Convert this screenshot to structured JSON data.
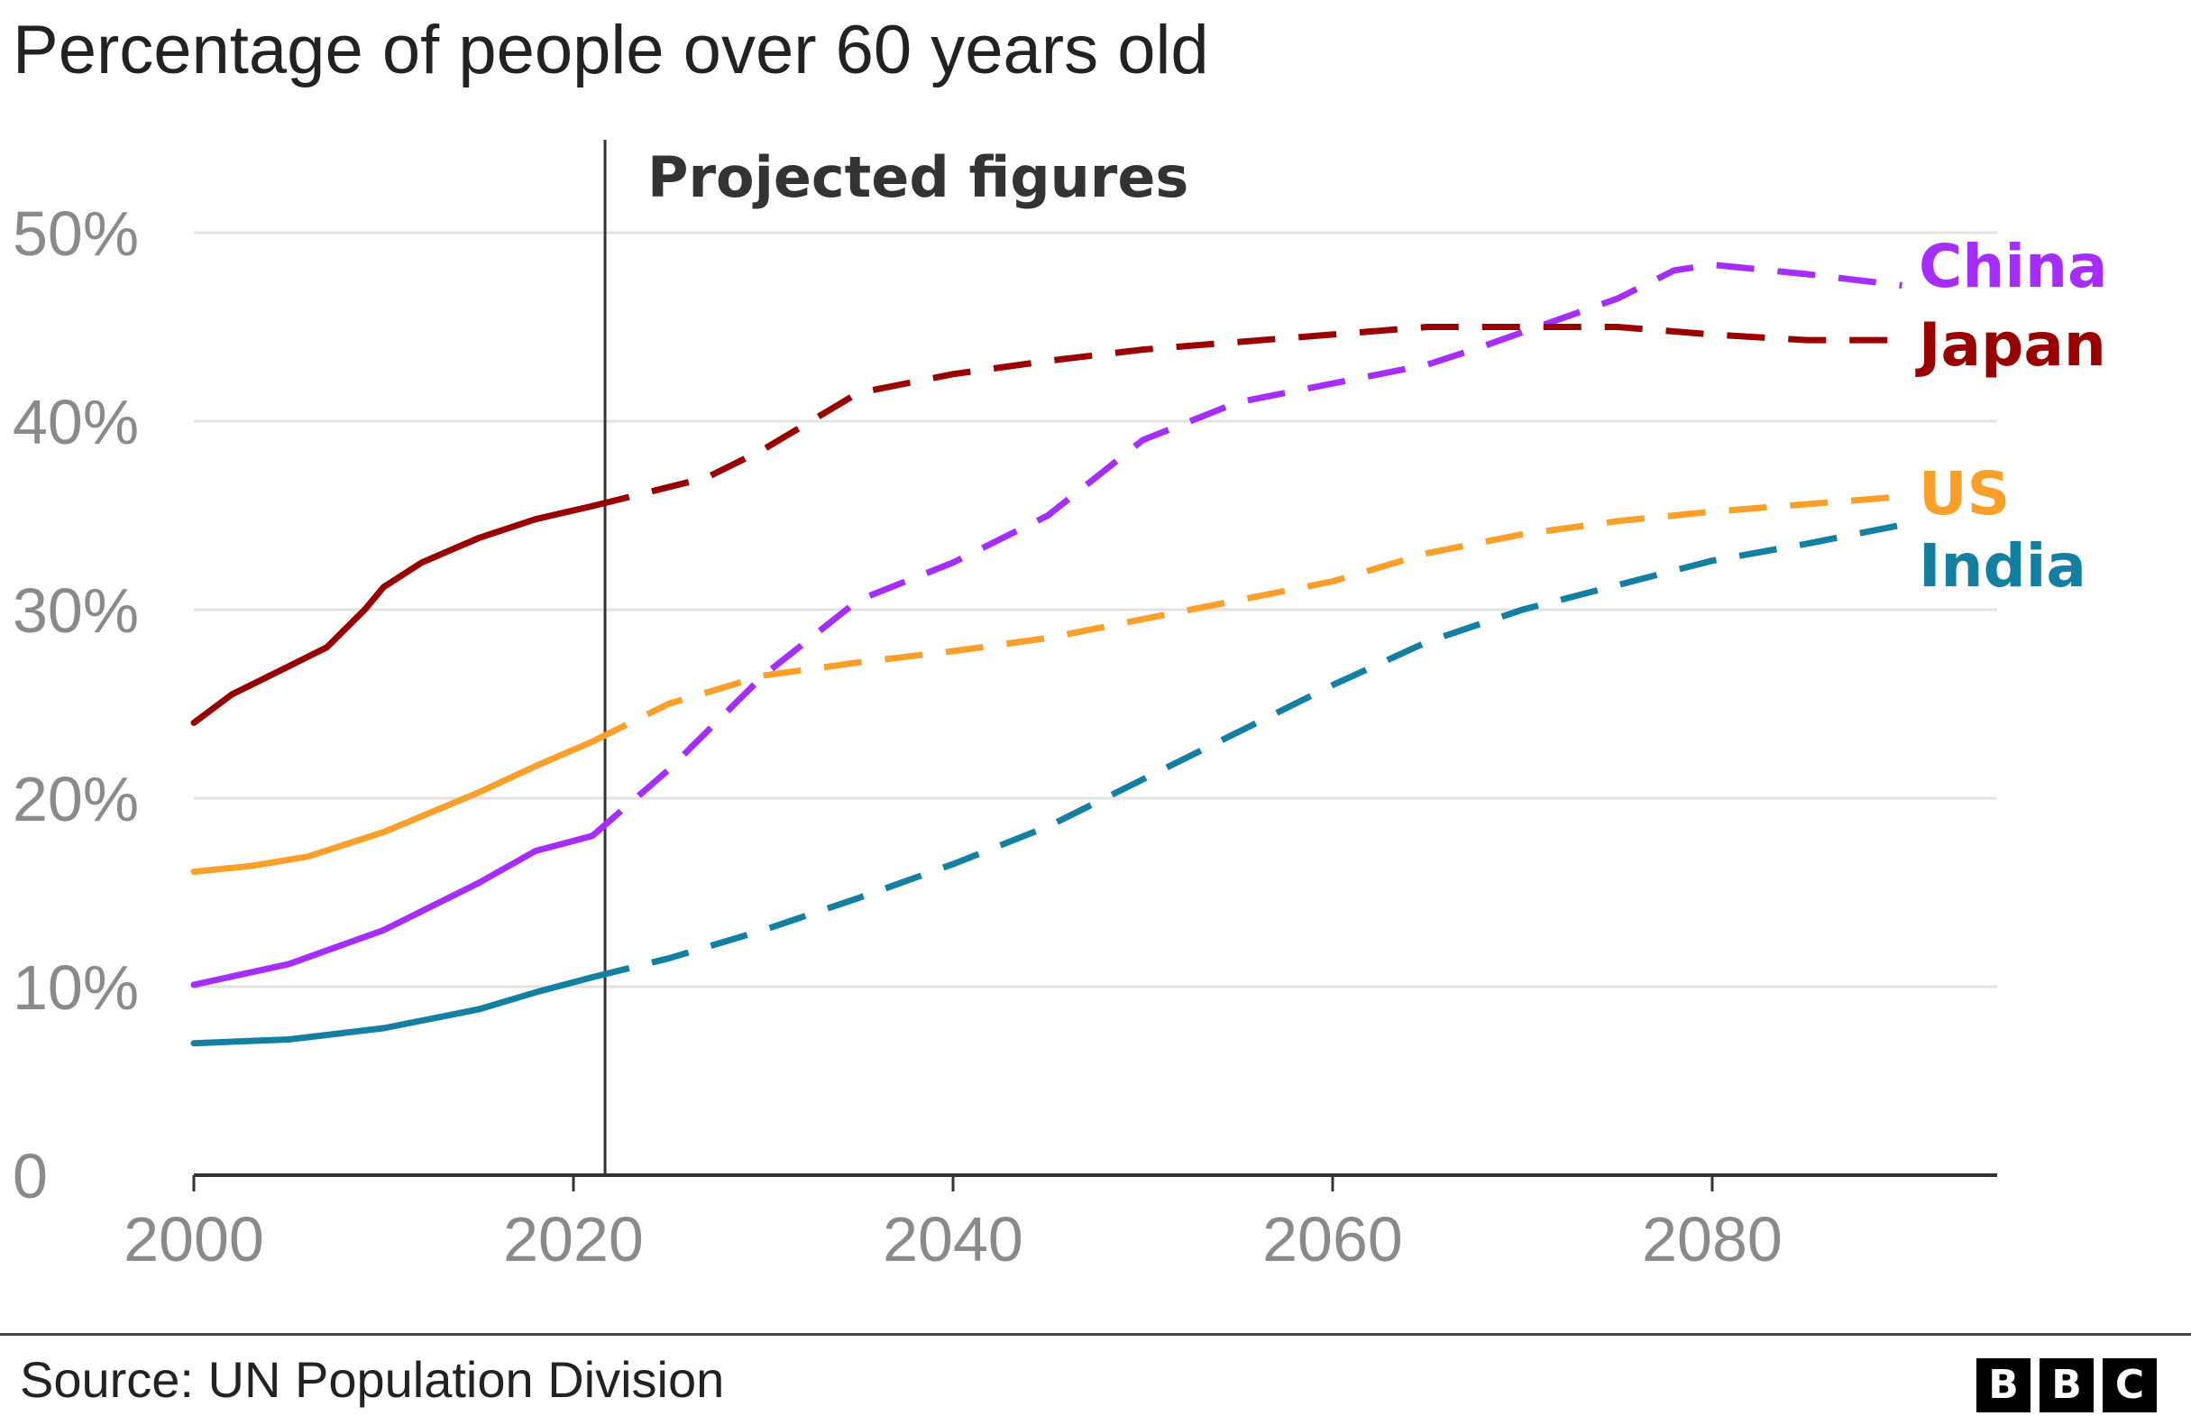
{
  "title": "Percentage of people over 60 years old",
  "source": "Source: UN Population Division",
  "logo": [
    "B",
    "B",
    "C"
  ],
  "chart_data": {
    "type": "line",
    "title": "Percentage of people over 60 years old",
    "xlabel": "",
    "ylabel": "",
    "xlim": [
      2000,
      2095
    ],
    "ylim": [
      0,
      50
    ],
    "grid": true,
    "legend": "inline labels at right end of lines",
    "x_ticks": [
      2000,
      2020,
      2040,
      2060,
      2080
    ],
    "x_tick_labels": [
      "2000",
      "2020",
      "2040",
      "2060",
      "2080"
    ],
    "y_ticks": [
      0,
      10,
      20,
      30,
      40,
      50
    ],
    "y_tick_labels": [
      "0",
      "10%",
      "20%",
      "30%",
      "40%",
      "50%"
    ],
    "projection_start": 2021,
    "annotation": "Projected figures",
    "series": [
      {
        "name": "China",
        "color": "#a52eff",
        "points": [
          [
            2000,
            10.1
          ],
          [
            2005,
            11.2
          ],
          [
            2010,
            13
          ],
          [
            2015,
            15.5
          ],
          [
            2018,
            17.2
          ],
          [
            2021,
            18
          ],
          [
            2025,
            21.5
          ],
          [
            2030,
            26.5
          ],
          [
            2035,
            30.5
          ],
          [
            2040,
            32.5
          ],
          [
            2045,
            35
          ],
          [
            2050,
            39
          ],
          [
            2055,
            41
          ],
          [
            2060,
            42
          ],
          [
            2065,
            43
          ],
          [
            2068,
            44
          ],
          [
            2075,
            46.5
          ],
          [
            2078,
            48
          ],
          [
            2080,
            48.3
          ],
          [
            2085,
            47.8
          ],
          [
            2090,
            47.2
          ]
        ]
      },
      {
        "name": "Japan",
        "color": "#990000",
        "points": [
          [
            2000,
            24
          ],
          [
            2002,
            25.5
          ],
          [
            2005,
            27
          ],
          [
            2007,
            28
          ],
          [
            2009,
            30
          ],
          [
            2010,
            31.2
          ],
          [
            2012,
            32.5
          ],
          [
            2015,
            33.8
          ],
          [
            2018,
            34.8
          ],
          [
            2021,
            35.5
          ],
          [
            2027,
            37
          ],
          [
            2030,
            38.5
          ],
          [
            2035,
            41.5
          ],
          [
            2040,
            42.5
          ],
          [
            2045,
            43.2
          ],
          [
            2050,
            43.8
          ],
          [
            2055,
            44.2
          ],
          [
            2060,
            44.6
          ],
          [
            2065,
            45
          ],
          [
            2070,
            45
          ],
          [
            2075,
            45
          ],
          [
            2080,
            44.6
          ],
          [
            2085,
            44.3
          ],
          [
            2090,
            44.3
          ]
        ]
      },
      {
        "name": "US",
        "color": "#fa9f2a",
        "points": [
          [
            2000,
            16.1
          ],
          [
            2003,
            16.4
          ],
          [
            2006,
            16.9
          ],
          [
            2010,
            18.2
          ],
          [
            2015,
            20.3
          ],
          [
            2018,
            21.7
          ],
          [
            2021,
            23
          ],
          [
            2025,
            25
          ],
          [
            2030,
            26.5
          ],
          [
            2035,
            27.2
          ],
          [
            2040,
            27.8
          ],
          [
            2045,
            28.5
          ],
          [
            2050,
            29.5
          ],
          [
            2055,
            30.5
          ],
          [
            2060,
            31.5
          ],
          [
            2065,
            33
          ],
          [
            2070,
            34
          ],
          [
            2075,
            34.7
          ],
          [
            2080,
            35.2
          ],
          [
            2085,
            35.6
          ],
          [
            2090,
            36
          ]
        ]
      },
      {
        "name": "India",
        "color": "#1380a1",
        "points": [
          [
            2000,
            7
          ],
          [
            2005,
            7.2
          ],
          [
            2010,
            7.8
          ],
          [
            2015,
            8.8
          ],
          [
            2018,
            9.7
          ],
          [
            2021,
            10.5
          ],
          [
            2025,
            11.5
          ],
          [
            2030,
            13
          ],
          [
            2035,
            14.7
          ],
          [
            2040,
            16.5
          ],
          [
            2045,
            18.5
          ],
          [
            2050,
            21
          ],
          [
            2055,
            23.5
          ],
          [
            2060,
            26
          ],
          [
            2065,
            28.3
          ],
          [
            2070,
            30
          ],
          [
            2075,
            31.3
          ],
          [
            2080,
            32.6
          ],
          [
            2085,
            33.5
          ],
          [
            2090,
            34.5
          ]
        ]
      }
    ]
  }
}
